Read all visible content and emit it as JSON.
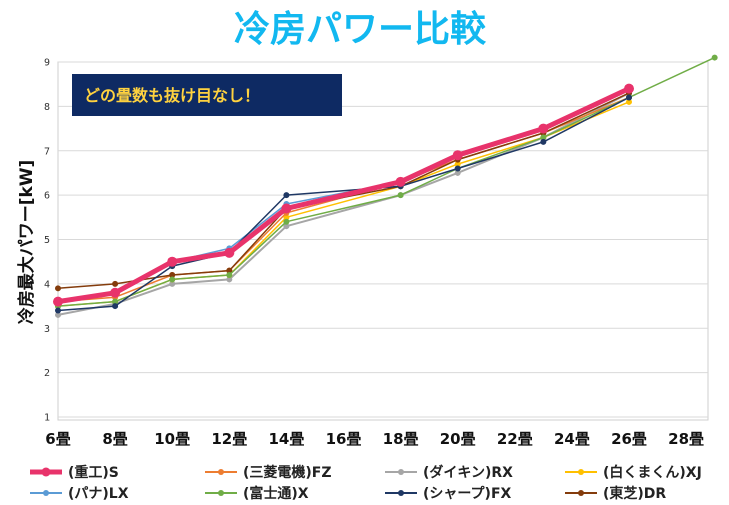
{
  "chart_data": {
    "type": "line",
    "title": "冷房パワー比較",
    "ylabel": "冷房最大パワー[kW]",
    "xlabel": "",
    "annotation": "どの畳数も抜け目なし！",
    "ylim": [
      1,
      9
    ],
    "yticks": [
      1,
      2,
      3,
      4,
      5,
      6,
      7,
      8,
      9
    ],
    "categories": [
      "6畳",
      "8畳",
      "10畳",
      "12畳",
      "14畳",
      "16畳",
      "18畳",
      "20畳",
      "22畳",
      "24畳",
      "26畳",
      "28畳"
    ],
    "cat_values": [
      6,
      8,
      10,
      12,
      14,
      16,
      18,
      20,
      22,
      24,
      26,
      28
    ],
    "series": [
      {
        "name": "(ダイキン)RX",
        "color": "#a6a6a6",
        "width": 2,
        "marker": 3,
        "x": [
          6,
          8,
          10,
          12,
          14,
          18,
          20,
          23,
          26
        ],
        "values": [
          3.3,
          3.55,
          4.0,
          4.1,
          5.3,
          6.0,
          6.5,
          7.3,
          8.3
        ]
      },
      {
        "name": "(白くまくん)XJ",
        "color": "#ffc000",
        "width": 1.5,
        "marker": 3,
        "x": [
          6,
          8,
          10,
          12,
          14,
          18,
          20,
          23,
          26
        ],
        "values": [
          3.5,
          3.6,
          4.1,
          4.2,
          5.5,
          6.2,
          6.7,
          7.3,
          8.1
        ]
      },
      {
        "name": "(三菱電機)FZ",
        "color": "#ed7d31",
        "width": 1.5,
        "marker": 3,
        "x": [
          6,
          8,
          10,
          12,
          14,
          18,
          20,
          23,
          26
        ],
        "values": [
          3.6,
          3.7,
          4.2,
          4.3,
          5.6,
          6.3,
          6.8,
          7.4,
          8.2
        ]
      },
      {
        "name": "(東芝)DR",
        "color": "#843c0c",
        "width": 1.5,
        "marker": 3,
        "x": [
          6,
          8,
          10,
          12,
          14,
          18,
          20,
          23,
          26
        ],
        "values": [
          3.9,
          4.0,
          4.2,
          4.3,
          5.7,
          6.2,
          6.8,
          7.4,
          8.3
        ]
      },
      {
        "name": "(パナ)LX",
        "color": "#5b9bd5",
        "width": 1.5,
        "marker": 3,
        "x": [
          6,
          8,
          10,
          12,
          14,
          18,
          20,
          23,
          26
        ],
        "values": [
          3.6,
          3.8,
          4.5,
          4.8,
          5.8,
          6.3,
          6.9,
          7.5,
          8.4
        ]
      },
      {
        "name": "(富士通)X",
        "color": "#70ad47",
        "width": 1.5,
        "marker": 3,
        "x": [
          6,
          8,
          10,
          12,
          14,
          18,
          20,
          23,
          26,
          29
        ],
        "values": [
          3.5,
          3.6,
          4.1,
          4.2,
          5.4,
          6.0,
          6.6,
          7.3,
          8.2,
          9.1
        ]
      },
      {
        "name": "(シャープ)FX",
        "color": "#1f3864",
        "width": 1.5,
        "marker": 3,
        "x": [
          6,
          8,
          10,
          12,
          14,
          18,
          20,
          23,
          26
        ],
        "values": [
          3.4,
          3.5,
          4.4,
          4.7,
          6.0,
          6.2,
          6.6,
          7.2,
          8.2
        ]
      },
      {
        "name": "(重工)S",
        "color": "#e8336b",
        "width": 5,
        "marker": 5,
        "x": [
          6,
          8,
          10,
          12,
          14,
          18,
          20,
          23,
          26
        ],
        "values": [
          3.6,
          3.8,
          4.5,
          4.7,
          5.7,
          6.3,
          6.9,
          7.5,
          8.4
        ]
      }
    ],
    "legend": [
      "(重工)S",
      "(三菱電機)FZ",
      "(ダイキン)RX",
      "(白くまくん)XJ",
      "(パナ)LX",
      "(富士通)X",
      "(シャープ)FX",
      "(東芝)DR"
    ],
    "colors": {
      "title": "#12b8f0",
      "badge_bg": "#0e2a63",
      "badge_text": "#ffd23f",
      "grid": "#d9d9d9",
      "axis": "#bfbfbf"
    }
  }
}
